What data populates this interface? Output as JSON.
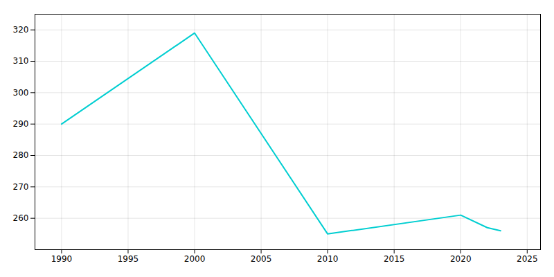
{
  "chart_data": {
    "type": "line",
    "x": [
      1990,
      2000,
      2010,
      2020,
      2022,
      2023
    ],
    "values": [
      290,
      319,
      255,
      261,
      257,
      256
    ],
    "color": "#00CED1",
    "xlim": [
      1988,
      2026
    ],
    "ylim": [
      250,
      325
    ],
    "xticks": [
      1990,
      1995,
      2000,
      2005,
      2010,
      2015,
      2020,
      2025
    ],
    "yticks": [
      260,
      270,
      280,
      290,
      300,
      310,
      320
    ],
    "grid": true
  }
}
